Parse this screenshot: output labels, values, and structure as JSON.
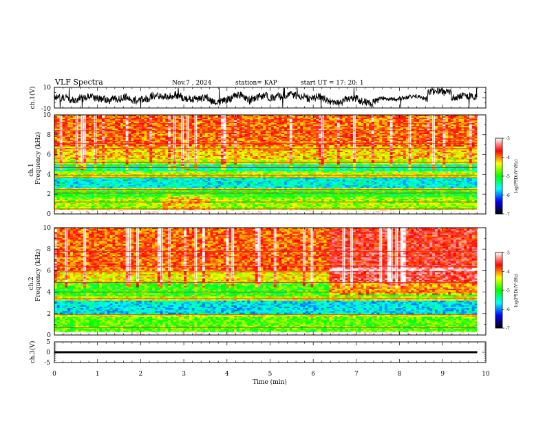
{
  "header": {
    "title": "VLF Spectra",
    "date": "Nov.7 , 2024",
    "station": "station= KAP",
    "start": "start UT = 17: 20: 1"
  },
  "chart_data": [
    {
      "type": "line",
      "panel": "ch1-waveform",
      "ylabel": "ch.1(V)",
      "ylim": [
        -10,
        10
      ],
      "ytick_labels": [
        "10",
        "-10"
      ],
      "xlim": [
        0,
        10
      ],
      "series_color": "#000000",
      "trace_end_min": 9.8
    },
    {
      "type": "heatmap",
      "panel": "ch1-spectrogram",
      "ylabel": "ch.1\nFrequency (kHz)",
      "ylabel_lines": [
        "ch.1",
        "Frequency (kHz)"
      ],
      "ylim": [
        0,
        10
      ],
      "ytick_labels": [
        "0",
        "2",
        "4",
        "6",
        "8",
        "10"
      ],
      "xlim": [
        0,
        10
      ],
      "data_end_min": 9.8,
      "colorbar": {
        "label": "log(PSD)(V²/Hz)",
        "range": [
          -7,
          -3
        ],
        "tick_labels": [
          "-3",
          "-4",
          "-5",
          "-6",
          "-7"
        ],
        "colors": [
          "#000000",
          "#0000ff",
          "#00ffff",
          "#00ff00",
          "#ffff00",
          "#ff0000",
          "#ffffff"
        ]
      },
      "bands": [
        {
          "f": [
            0.0,
            0.35
          ],
          "level": -2.8
        },
        {
          "f": [
            0.35,
            1.6
          ],
          "level": -4.6
        },
        {
          "f": [
            1.6,
            2.3
          ],
          "level": -5.0
        },
        {
          "f": [
            2.3,
            2.7
          ],
          "level": -4.5
        },
        {
          "f": [
            2.7,
            3.6
          ],
          "level": -5.6
        },
        {
          "f": [
            3.6,
            4.3
          ],
          "level": -4.5
        },
        {
          "f": [
            4.3,
            5.0
          ],
          "level": -5.4
        },
        {
          "f": [
            5.0,
            5.6
          ],
          "level": -4.5
        },
        {
          "f": [
            5.6,
            6.8
          ],
          "level": -4.2
        },
        {
          "f": [
            6.8,
            10.0
          ],
          "level": -3.9
        }
      ],
      "lines_khz": [
        0.5,
        1.2,
        2.1,
        2.45,
        3.7,
        3.9,
        4.7,
        5.2,
        6.6,
        7.1,
        8.4
      ]
    },
    {
      "type": "heatmap",
      "panel": "ch2-spectrogram",
      "ylabel": "ch.2\nFrequency (kHz)",
      "ylabel_lines": [
        "ch.2",
        "Frequency (kHz)"
      ],
      "ylim": [
        0,
        10
      ],
      "ytick_labels": [
        "0",
        "2",
        "4",
        "6",
        "8",
        "10"
      ],
      "xlim": [
        0,
        10
      ],
      "data_end_min": 9.8,
      "colorbar": {
        "label": "log(PSD)(V²/Hz)",
        "range": [
          -7,
          -3
        ],
        "tick_labels": [
          "-3",
          "-4",
          "-5",
          "-6",
          "-7"
        ],
        "colors": [
          "#000000",
          "#0000ff",
          "#00ffff",
          "#00ff00",
          "#ffff00",
          "#ff0000",
          "#ffffff"
        ]
      },
      "bands": [
        {
          "f": [
            0.0,
            0.3
          ],
          "level": -2.8
        },
        {
          "f": [
            0.3,
            1.7
          ],
          "level": -4.8
        },
        {
          "f": [
            1.7,
            2.0
          ],
          "level": -4.4
        },
        {
          "f": [
            2.0,
            3.2
          ],
          "level": -5.7
        },
        {
          "f": [
            3.2,
            3.6
          ],
          "level": -4.4
        },
        {
          "f": [
            3.6,
            4.8
          ],
          "level": -4.9
        },
        {
          "f": [
            4.8,
            6.0
          ],
          "level": -4.3
        },
        {
          "f": [
            6.0,
            10.0
          ],
          "level": -3.9
        }
      ],
      "lines_khz": [
        0.7,
        1.9,
        3.4,
        4.0,
        4.9,
        5.9,
        6.4,
        7.3,
        7.8
      ],
      "enhanced_after_min": 6.4
    },
    {
      "type": "line",
      "panel": "ch3-waveform",
      "ylabel": "ch.3(V)",
      "ylim": [
        -5,
        5
      ],
      "ytick_labels": [
        "5",
        "0",
        "-5"
      ],
      "xlim": [
        0,
        10
      ],
      "xlabel": "Time (min)",
      "xtick_labels": [
        "0",
        "1",
        "2",
        "3",
        "4",
        "5",
        "6",
        "7",
        "8",
        "9",
        "10"
      ],
      "series_color": "#000000",
      "signal_band_v": [
        -0.5,
        0.5
      ],
      "trace_end_min": 9.8
    }
  ]
}
